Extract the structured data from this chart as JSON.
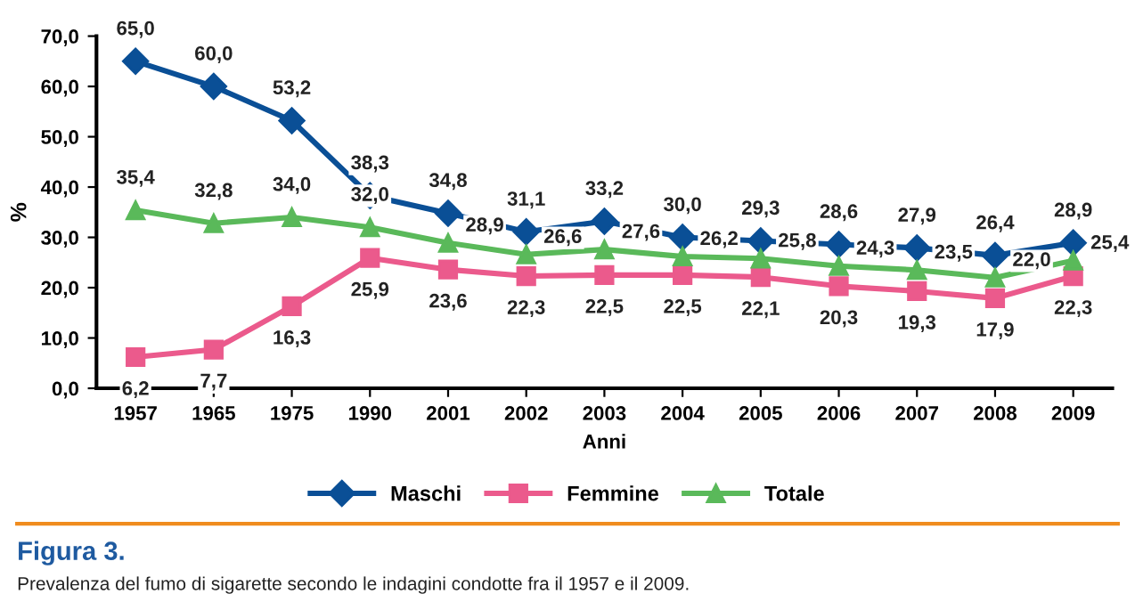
{
  "chart_data": {
    "type": "line",
    "title": "Figura 3.",
    "xlabel": "Anni",
    "ylabel": "%",
    "categories": [
      "1957",
      "1965",
      "1975",
      "1990",
      "2001",
      "2002",
      "2003",
      "2004",
      "2005",
      "2006",
      "2007",
      "2008",
      "2009"
    ],
    "ylim": [
      0,
      70
    ],
    "yticks": [
      {
        "value": 0,
        "label": "0,0"
      },
      {
        "value": 10,
        "label": "10,0"
      },
      {
        "value": 20,
        "label": "20,0"
      },
      {
        "value": 30,
        "label": "30,0"
      },
      {
        "value": 40,
        "label": "40,0"
      },
      {
        "value": 50,
        "label": "50,0"
      },
      {
        "value": 60,
        "label": "60,0"
      },
      {
        "value": 70,
        "label": "70,0"
      }
    ],
    "grid": false,
    "legend": "bottom",
    "series": [
      {
        "name": "Maschi",
        "color": "#0a4f96",
        "marker": "diamond",
        "values": [
          65.0,
          60.0,
          53.2,
          38.3,
          34.8,
          31.1,
          33.2,
          30.0,
          29.3,
          28.6,
          27.9,
          26.4,
          28.9
        ],
        "value_labels": [
          "65,0",
          "60,0",
          "53,2",
          "38,3",
          "34,8",
          "31,1",
          "33,2",
          "30,0",
          "29,3",
          "28,6",
          "27,9",
          "26,4",
          "28,9"
        ]
      },
      {
        "name": "Femmine",
        "color": "#eb5a8c",
        "marker": "square",
        "values": [
          6.2,
          7.7,
          16.3,
          25.9,
          23.6,
          22.3,
          22.5,
          22.5,
          22.1,
          20.3,
          19.3,
          17.9,
          22.3
        ],
        "value_labels": [
          "6,2",
          "7,7",
          "16,3",
          "25,9",
          "23,6",
          "22,3",
          "22,5",
          "22,5",
          "22,1",
          "20,3",
          "19,3",
          "17,9",
          "22,3"
        ]
      },
      {
        "name": "Totale",
        "color": "#5ab95a",
        "marker": "triangle",
        "values": [
          35.4,
          32.8,
          34.0,
          32.0,
          28.9,
          26.6,
          27.6,
          26.2,
          25.8,
          24.3,
          23.5,
          22.0,
          25.4
        ],
        "value_labels": [
          "35,4",
          "32,8",
          "34,0",
          "32,0",
          "28,9",
          "26,6",
          "27,6",
          "26,2",
          "25,8",
          "24,3",
          "23,5",
          "22,0",
          "25,4"
        ]
      }
    ],
    "annotations": [
      "Prevalenza del fumo di sigarette secondo le indagini condotte fra il 1957 e il 2009."
    ]
  }
}
